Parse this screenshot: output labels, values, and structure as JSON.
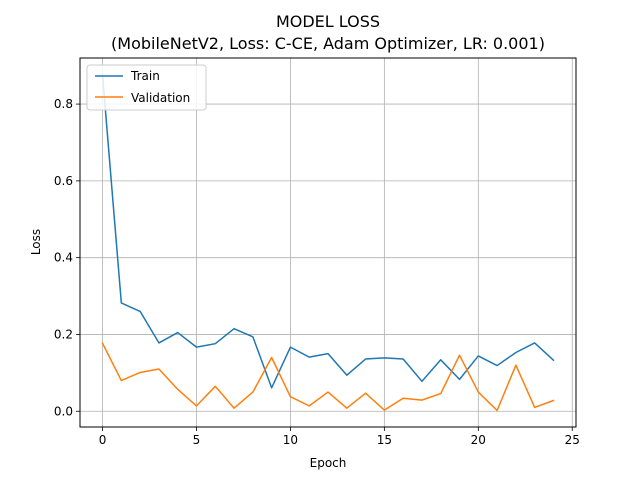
{
  "chart_data": {
    "type": "line",
    "title": "MODEL LOSS",
    "subtitle": "(MobileNetV2, Loss: C-CE, Adam Optimizer, LR: 0.001)",
    "xlabel": "Epoch",
    "ylabel": "Loss",
    "xlim": [
      -1.2,
      25.2
    ],
    "ylim": [
      -0.041,
      0.92
    ],
    "xticks": [
      0,
      5,
      10,
      15,
      20,
      25
    ],
    "yticks": [
      0.0,
      0.2,
      0.4,
      0.6,
      0.8
    ],
    "xtick_labels": [
      "0",
      "5",
      "10",
      "15",
      "20",
      "25"
    ],
    "ytick_labels": [
      "0.0",
      "0.2",
      "0.4",
      "0.6",
      "0.8"
    ],
    "grid": true,
    "legend_position": "top-left",
    "x": [
      0,
      1,
      2,
      3,
      4,
      5,
      6,
      7,
      8,
      9,
      10,
      11,
      12,
      13,
      14,
      15,
      16,
      17,
      18,
      19,
      20,
      21,
      22,
      23,
      24
    ],
    "series": [
      {
        "name": "Train",
        "color": "#1f77b4",
        "values": [
          0.875,
          0.282,
          0.26,
          0.178,
          0.205,
          0.167,
          0.176,
          0.215,
          0.194,
          0.061,
          0.167,
          0.141,
          0.15,
          0.094,
          0.136,
          0.139,
          0.136,
          0.078,
          0.134,
          0.083,
          0.144,
          0.119,
          0.153,
          0.178,
          0.133
        ]
      },
      {
        "name": "Validation",
        "color": "#ff7f0e",
        "values": [
          0.177,
          0.08,
          0.101,
          0.11,
          0.057,
          0.014,
          0.065,
          0.008,
          0.05,
          0.14,
          0.038,
          0.014,
          0.05,
          0.008,
          0.047,
          0.003,
          0.034,
          0.029,
          0.046,
          0.146,
          0.05,
          0.002,
          0.12,
          0.01,
          0.028
        ]
      }
    ]
  }
}
